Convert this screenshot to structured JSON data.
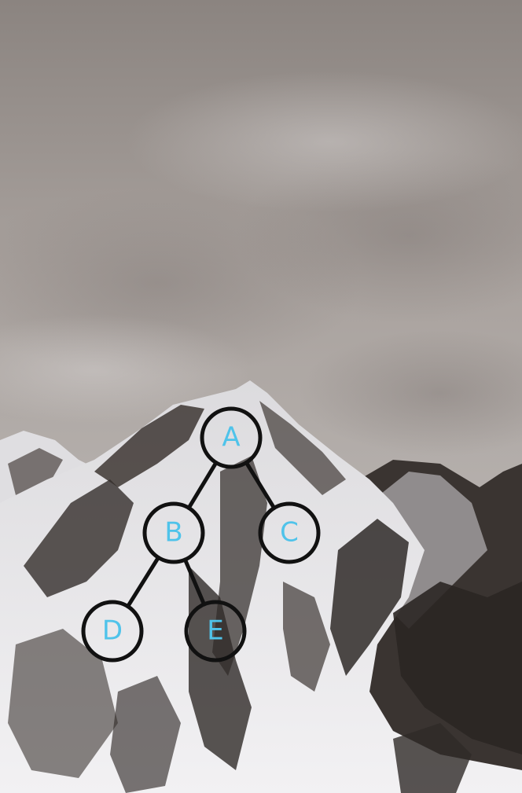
{
  "tree": {
    "nodes": [
      {
        "id": "A",
        "label": "A"
      },
      {
        "id": "B",
        "label": "B"
      },
      {
        "id": "C",
        "label": "C"
      },
      {
        "id": "D",
        "label": "D"
      },
      {
        "id": "E",
        "label": "E"
      }
    ],
    "edges": [
      {
        "from": "A",
        "to": "B"
      },
      {
        "from": "A",
        "to": "C"
      },
      {
        "from": "B",
        "to": "D"
      },
      {
        "from": "B",
        "to": "E"
      }
    ]
  },
  "colors": {
    "node_stroke": "#111111",
    "edge_stroke": "#111111",
    "label": "#4fc3ea",
    "sky_top": "#8a837f",
    "sky_mid": "#b0aaa6",
    "snow": "#e9e8ea",
    "rock": "#2f2a28"
  }
}
